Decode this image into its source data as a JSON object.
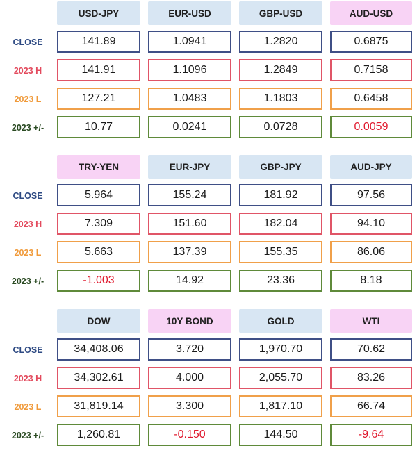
{
  "row_labels": {
    "close": "CLOSE",
    "high": "2023 H",
    "low": "2023 L",
    "change": "2023 +/-"
  },
  "sections": [
    {
      "headers": [
        "USD-JPY",
        "EUR-USD",
        "GBP-USD",
        "AUD-USD"
      ],
      "header_highlight": [
        false,
        false,
        false,
        true
      ],
      "close": [
        "141.89",
        "1.0941",
        "1.2820",
        "0.6875"
      ],
      "high": [
        "141.91",
        "1.1096",
        "1.2849",
        "0.7158"
      ],
      "low": [
        "127.21",
        "1.0483",
        "1.1803",
        "0.6458"
      ],
      "change": [
        "10.77",
        "0.0241",
        "0.0728",
        "0.0059"
      ],
      "change_negative": [
        false,
        false,
        false,
        true
      ]
    },
    {
      "headers": [
        "TRY-YEN",
        "EUR-JPY",
        "GBP-JPY",
        "AUD-JPY"
      ],
      "header_highlight": [
        true,
        false,
        false,
        false
      ],
      "close": [
        "5.964",
        "155.24",
        "181.92",
        "97.56"
      ],
      "high": [
        "7.309",
        "151.60",
        "182.04",
        "94.10"
      ],
      "low": [
        "5.663",
        "137.39",
        "155.35",
        "86.06"
      ],
      "change": [
        "-1.003",
        "14.92",
        "23.36",
        "8.18"
      ],
      "change_negative": [
        true,
        false,
        false,
        false
      ]
    },
    {
      "headers": [
        "DOW",
        "10Y BOND",
        "GOLD",
        "WTI"
      ],
      "header_highlight": [
        false,
        true,
        false,
        true
      ],
      "close": [
        "34,408.06",
        "3.720",
        "1,970.70",
        "70.62"
      ],
      "high": [
        "34,302.61",
        "4.000",
        "2,055.70",
        "83.26"
      ],
      "low": [
        "31,819.14",
        "3.300",
        "1,817.10",
        "66.74"
      ],
      "change": [
        "1,260.81",
        "-0.150",
        "144.50",
        "-9.64"
      ],
      "change_negative": [
        false,
        true,
        false,
        true
      ]
    }
  ],
  "colors": {
    "header_blue": "#d8e6f3",
    "header_pink": "#f8d3f5",
    "close_border": "#3f4f86",
    "high_border": "#e05567",
    "low_border": "#f0a04a",
    "change_border": "#5f8a3a",
    "negative_text": "#e0182d"
  }
}
